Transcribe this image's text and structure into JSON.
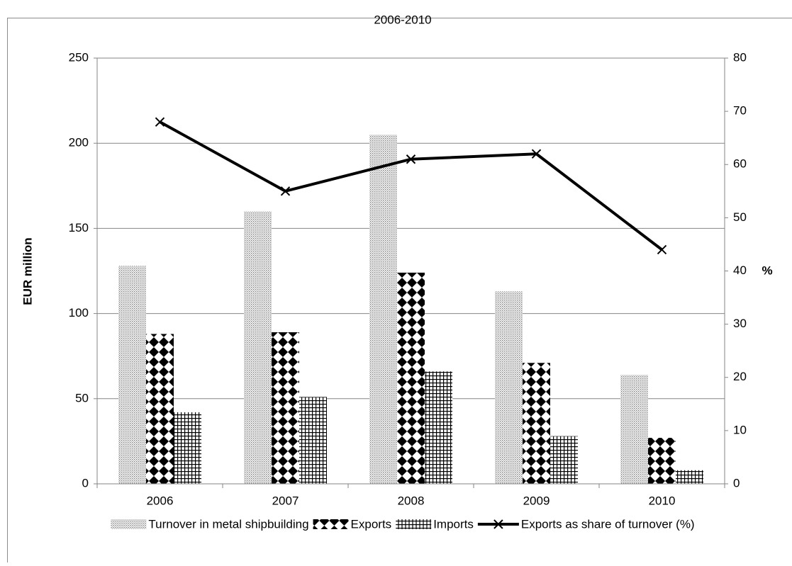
{
  "chart_data": {
    "type": "bar",
    "title": "2006-2010",
    "y_label": "EUR million",
    "y2_label": "%",
    "categories": [
      "2006",
      "2007",
      "2008",
      "2009",
      "2010"
    ],
    "series": [
      {
        "name": "Turnover in metal shipbuilding",
        "type": "bar",
        "pattern": "dots",
        "color": "#7f7f7f",
        "values": [
          128,
          160,
          205,
          113,
          64
        ]
      },
      {
        "name": "Exports",
        "type": "bar",
        "pattern": "diamonds",
        "color": "#000000",
        "values": [
          88,
          89,
          124,
          71,
          27
        ]
      },
      {
        "name": "Imports",
        "type": "bar",
        "pattern": "grid",
        "color": "#000000",
        "values": [
          42,
          51,
          66,
          28,
          8
        ]
      },
      {
        "name": "Exports as share of turnover (%)",
        "type": "line",
        "marker": "x",
        "axis": "y2",
        "color": "#000000",
        "values": [
          68,
          55,
          61,
          62,
          44
        ]
      }
    ],
    "ylim": [
      0,
      250
    ],
    "yticks": [
      0,
      50,
      100,
      150,
      200,
      250
    ],
    "y2lim": [
      0,
      80
    ],
    "y2ticks": [
      0,
      10,
      20,
      30,
      40,
      50,
      60,
      70,
      80
    ],
    "grid": true,
    "legend": "bottom"
  }
}
